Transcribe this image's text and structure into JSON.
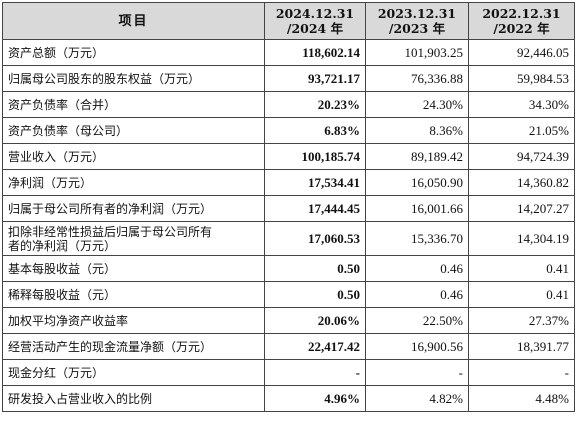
{
  "header": {
    "item": "项目",
    "periods": [
      {
        "line1": "2024.12.31",
        "line2": "/2024 年"
      },
      {
        "line1": "2023.12.31",
        "line2": "/2023 年"
      },
      {
        "line1": "2022.12.31",
        "line2": "/2022 年"
      }
    ]
  },
  "rows": [
    {
      "label": "资产总额（万元）",
      "values": [
        "118,602.14",
        "101,903.25",
        "92,446.05"
      ]
    },
    {
      "label": "归属母公司股东的股东权益（万元）",
      "values": [
        "93,721.17",
        "76,336.88",
        "59,984.53"
      ]
    },
    {
      "label": "资产负债率（合并）",
      "values": [
        "20.23%",
        "24.30%",
        "34.30%"
      ]
    },
    {
      "label": "资产负债率（母公司）",
      "values": [
        "6.83%",
        "8.36%",
        "21.05%"
      ]
    },
    {
      "label": "营业收入（万元）",
      "values": [
        "100,185.74",
        "89,189.42",
        "94,724.39"
      ]
    },
    {
      "label": "净利润（万元）",
      "values": [
        "17,534.41",
        "16,050.90",
        "14,360.82"
      ]
    },
    {
      "label": "归属于母公司所有者的净利润（万元）",
      "values": [
        "17,444.45",
        "16,001.66",
        "14,207.27"
      ]
    },
    {
      "label_line1": "扣除非经常性损益后归属于母公司所有",
      "label_line2": "者的净利润（万元）",
      "values": [
        "17,060.53",
        "15,336.70",
        "14,304.19"
      ]
    },
    {
      "label": "基本每股收益（元）",
      "values": [
        "0.50",
        "0.46",
        "0.41"
      ]
    },
    {
      "label": "稀释每股收益（元）",
      "values": [
        "0.50",
        "0.46",
        "0.41"
      ]
    },
    {
      "label": "加权平均净资产收益率",
      "values": [
        "20.06%",
        "22.50%",
        "27.37%"
      ]
    },
    {
      "label": "经营活动产生的现金流量净额（万元）",
      "values": [
        "22,417.42",
        "16,900.56",
        "18,391.77"
      ]
    },
    {
      "label": "现金分红（万元）",
      "values": [
        "-",
        "-",
        "-"
      ]
    },
    {
      "label": "研发投入占营业收入的比例",
      "values": [
        "4.96%",
        "4.82%",
        "4.48%"
      ]
    }
  ]
}
